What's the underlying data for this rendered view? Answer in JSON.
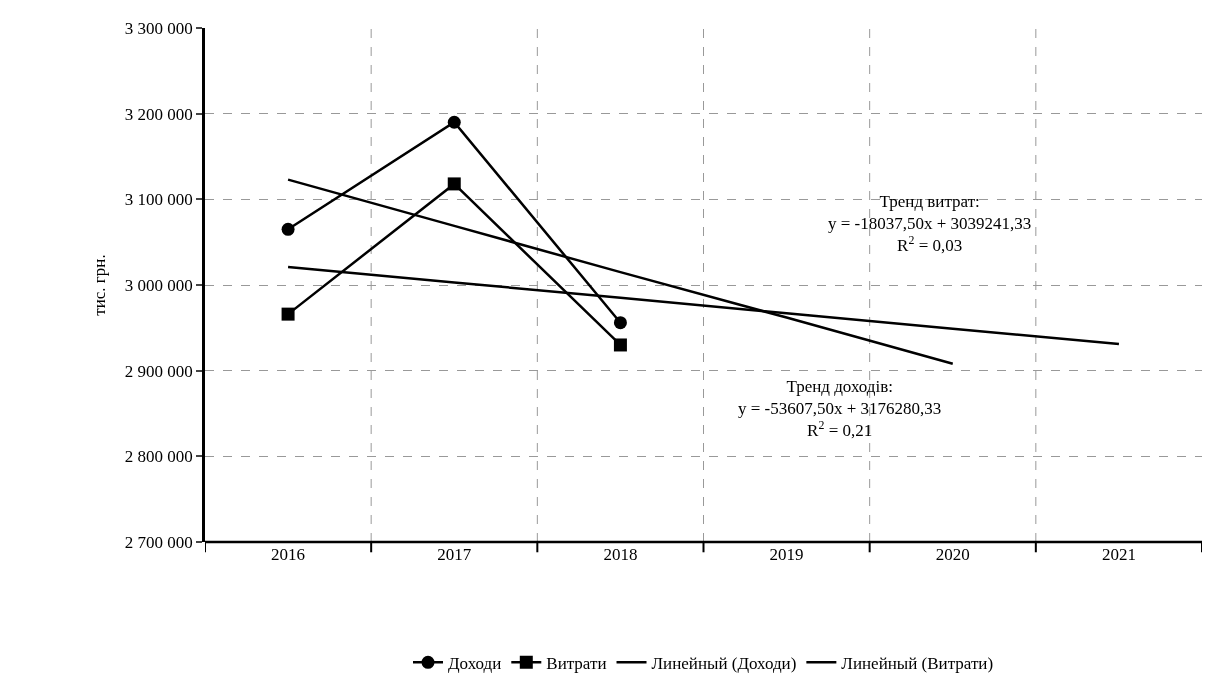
{
  "chart_data": {
    "type": "line",
    "ylabel": "тис. грн.",
    "categories": [
      "2016",
      "2017",
      "2018",
      "2019",
      "2020",
      "2021"
    ],
    "series": [
      {
        "name": "Доходи",
        "color": "#000000",
        "marker": "circle",
        "values": [
          3065000,
          3190000,
          2956000,
          null,
          null,
          null
        ]
      },
      {
        "name": "Витрати",
        "color": "#000000",
        "marker": "square",
        "values": [
          2966000,
          3118000,
          2930000,
          null,
          null,
          null
        ]
      },
      {
        "name": "Линейный (Доходи)",
        "color": "#000000",
        "marker": "none",
        "values": [
          3123000,
          3069000,
          3015000,
          2962000,
          2908000,
          null
        ]
      },
      {
        "name": "Линейный (Витрати)",
        "color": "#000000",
        "marker": "none",
        "values": [
          3021000,
          3003000,
          2985000,
          2967000,
          2949000,
          2931000
        ]
      }
    ],
    "ylim": [
      2700000,
      3300000
    ],
    "yticks": [
      {
        "value": 2700000,
        "label": "2 700 000"
      },
      {
        "value": 2800000,
        "label": "2 800 000"
      },
      {
        "value": 2900000,
        "label": "2 900 000"
      },
      {
        "value": 3000000,
        "label": "3 000 000"
      },
      {
        "value": 3100000,
        "label": "3 100 000"
      },
      {
        "value": 3200000,
        "label": "3 200 000"
      },
      {
        "value": 3300000,
        "label": "3 300 000"
      }
    ],
    "grid": true,
    "legend": "bottom",
    "line_style": "solid",
    "annotations": [
      "Тренд витрат:\ny = -18037,50x + 3039241,33\nR$^{2}$ = 0,03",
      "Тренд доходів:\ny = -53607,50x + 3176280,33\nR$^{2}$ = 0,21"
    ]
  }
}
